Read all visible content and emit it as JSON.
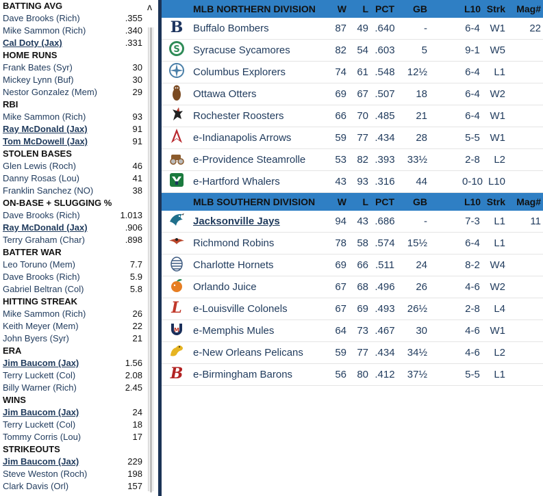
{
  "leaders": [
    {
      "title": "BATTING AVG",
      "rows": [
        {
          "name": "Dave Brooks (Rich)",
          "value": ".355",
          "link": false
        },
        {
          "name": "Mike Sammon (Rich)",
          "value": ".340",
          "link": false
        },
        {
          "name": "Cal Doty (Jax)",
          "value": ".331",
          "link": true
        }
      ]
    },
    {
      "title": "HOME RUNS",
      "rows": [
        {
          "name": "Frank Bates (Syr)",
          "value": "30",
          "link": false
        },
        {
          "name": "Mickey Lynn (Buf)",
          "value": "30",
          "link": false
        },
        {
          "name": "Nestor Gonzalez (Mem)",
          "value": "29",
          "link": false
        }
      ]
    },
    {
      "title": "RBI",
      "rows": [
        {
          "name": "Mike Sammon (Rich)",
          "value": "93",
          "link": false
        },
        {
          "name": "Ray McDonald (Jax)",
          "value": "91",
          "link": true
        },
        {
          "name": "Tom McDowell (Jax)",
          "value": "91",
          "link": true
        }
      ]
    },
    {
      "title": "STOLEN BASES",
      "rows": [
        {
          "name": "Glen Lewis (Roch)",
          "value": "46",
          "link": false
        },
        {
          "name": "Danny Rosas (Lou)",
          "value": "41",
          "link": false
        },
        {
          "name": "Franklin Sanchez (NO)",
          "value": "38",
          "link": false
        }
      ]
    },
    {
      "title": "ON-BASE + SLUGGING %",
      "rows": [
        {
          "name": "Dave Brooks (Rich)",
          "value": "1.013",
          "link": false
        },
        {
          "name": "Ray McDonald (Jax)",
          "value": ".906",
          "link": true
        },
        {
          "name": "Terry Graham (Char)",
          "value": ".898",
          "link": false
        }
      ]
    },
    {
      "title": "BATTER WAR",
      "rows": [
        {
          "name": "Leo Toruno (Mem)",
          "value": "7.7",
          "link": false
        },
        {
          "name": "Dave Brooks (Rich)",
          "value": "5.9",
          "link": false
        },
        {
          "name": "Gabriel Beltran (Col)",
          "value": "5.8",
          "link": false
        }
      ]
    },
    {
      "title": "HITTING STREAK",
      "rows": [
        {
          "name": "Mike Sammon (Rich)",
          "value": "26",
          "link": false
        },
        {
          "name": "Keith Meyer (Mem)",
          "value": "22",
          "link": false
        },
        {
          "name": "John Byers (Syr)",
          "value": "21",
          "link": false
        }
      ]
    },
    {
      "title": "ERA",
      "rows": [
        {
          "name": "Jim Baucom (Jax)",
          "value": "1.56",
          "link": true
        },
        {
          "name": "Terry Luckett (Col)",
          "value": "2.08",
          "link": false
        },
        {
          "name": "Billy Warner (Rich)",
          "value": "2.45",
          "link": false
        }
      ]
    },
    {
      "title": "WINS",
      "rows": [
        {
          "name": "Jim Baucom (Jax)",
          "value": "24",
          "link": true
        },
        {
          "name": "Terry Luckett (Col)",
          "value": "18",
          "link": false
        },
        {
          "name": "Tommy Corris (Lou)",
          "value": "17",
          "link": false
        }
      ]
    },
    {
      "title": "STRIKEOUTS",
      "rows": [
        {
          "name": "Jim Baucom (Jax)",
          "value": "229",
          "link": true
        },
        {
          "name": "Steve Weston (Roch)",
          "value": "198",
          "link": false
        },
        {
          "name": "Clark Davis (Orl)",
          "value": "157",
          "link": false
        }
      ]
    }
  ],
  "collapse_glyph": "ʌ",
  "columns": {
    "w": "W",
    "l": "L",
    "pct": "PCT",
    "gb": "GB",
    "l10": "L10",
    "strk": "Strk",
    "mag": "Mag#"
  },
  "divisions": [
    {
      "title": "MLB NORTHERN DIVISION",
      "teams": [
        {
          "name": "Buffalo Bombers",
          "w": "87",
          "l": "49",
          "pct": ".640",
          "gb": "-",
          "l10": "6-4",
          "strk": "W1",
          "mag": "22",
          "logo": "b-letter-icon",
          "color": "#1e3560",
          "link": false
        },
        {
          "name": "Syracuse Sycamores",
          "w": "82",
          "l": "54",
          "pct": ".603",
          "gb": "5",
          "l10": "9-1",
          "strk": "W5",
          "mag": "",
          "logo": "sycamore-icon",
          "color": "#2e8b57",
          "link": false
        },
        {
          "name": "Columbus Explorers",
          "w": "74",
          "l": "61",
          "pct": ".548",
          "gb": "12½",
          "l10": "6-4",
          "strk": "L1",
          "mag": "",
          "logo": "compass-icon",
          "color": "#4a7fa8",
          "link": false
        },
        {
          "name": "Ottawa Otters",
          "w": "69",
          "l": "67",
          "pct": ".507",
          "gb": "18",
          "l10": "6-4",
          "strk": "W2",
          "mag": "",
          "logo": "otter-icon",
          "color": "#7a4a22",
          "link": false
        },
        {
          "name": "Rochester Roosters",
          "w": "66",
          "l": "70",
          "pct": ".485",
          "gb": "21",
          "l10": "6-4",
          "strk": "W1",
          "mag": "",
          "logo": "rooster-icon",
          "color": "#222222",
          "link": false
        },
        {
          "name": "e-Indianapolis Arrows",
          "w": "59",
          "l": "77",
          "pct": ".434",
          "gb": "28",
          "l10": "5-5",
          "strk": "W1",
          "mag": "",
          "logo": "arrow-icon",
          "color": "#b8282e",
          "link": false
        },
        {
          "name": "e-Providence Steamrolle",
          "w": "53",
          "l": "82",
          "pct": ".393",
          "gb": "33½",
          "l10": "2-8",
          "strk": "L2",
          "mag": "",
          "logo": "steamroller-icon",
          "color": "#8b5a2b",
          "link": false
        },
        {
          "name": "e-Hartford Whalers",
          "w": "43",
          "l": "93",
          "pct": ".316",
          "gb": "44",
          "l10": "0-10",
          "strk": "L10",
          "mag": "",
          "logo": "whale-tail-icon",
          "color": "#1b7a3e",
          "link": false
        }
      ]
    },
    {
      "title": "MLB SOUTHERN DIVISION",
      "teams": [
        {
          "name": "Jacksonville Jays",
          "w": "94",
          "l": "43",
          "pct": ".686",
          "gb": "-",
          "l10": "7-3",
          "strk": "L1",
          "mag": "11",
          "logo": "jay-bird-icon",
          "color": "#1f6f8b",
          "link": true
        },
        {
          "name": "Richmond Robins",
          "w": "78",
          "l": "58",
          "pct": ".574",
          "gb": "15½",
          "l10": "6-4",
          "strk": "L1",
          "mag": "",
          "logo": "robin-icon",
          "color": "#b8452a",
          "link": false
        },
        {
          "name": "Charlotte Hornets",
          "w": "69",
          "l": "66",
          "pct": ".511",
          "gb": "24",
          "l10": "8-2",
          "strk": "W4",
          "mag": "",
          "logo": "hornet-nest-icon",
          "color": "#3d5a80",
          "link": false
        },
        {
          "name": "Orlando Juice",
          "w": "67",
          "l": "68",
          "pct": ".496",
          "gb": "26",
          "l10": "4-6",
          "strk": "W2",
          "mag": "",
          "logo": "orange-icon",
          "color": "#e67e22",
          "link": false
        },
        {
          "name": "e-Louisville Colonels",
          "w": "67",
          "l": "69",
          "pct": ".493",
          "gb": "26½",
          "l10": "2-8",
          "strk": "L4",
          "mag": "",
          "logo": "l-script-icon",
          "color": "#c0392b",
          "link": false
        },
        {
          "name": "e-Memphis Mules",
          "w": "64",
          "l": "73",
          "pct": ".467",
          "gb": "30",
          "l10": "4-6",
          "strk": "W1",
          "mag": "",
          "logo": "horseshoe-icon",
          "color": "#1a2f5a",
          "link": false
        },
        {
          "name": "e-New Orleans Pelicans",
          "w": "59",
          "l": "77",
          "pct": ".434",
          "gb": "34½",
          "l10": "4-6",
          "strk": "L2",
          "mag": "",
          "logo": "pelican-icon",
          "color": "#e6b422",
          "link": false
        },
        {
          "name": "e-Birmingham Barons",
          "w": "56",
          "l": "80",
          "pct": ".412",
          "gb": "37½",
          "l10": "5-5",
          "strk": "L1",
          "mag": "",
          "logo": "b-script-icon",
          "color": "#b22222",
          "link": false
        }
      ]
    }
  ]
}
